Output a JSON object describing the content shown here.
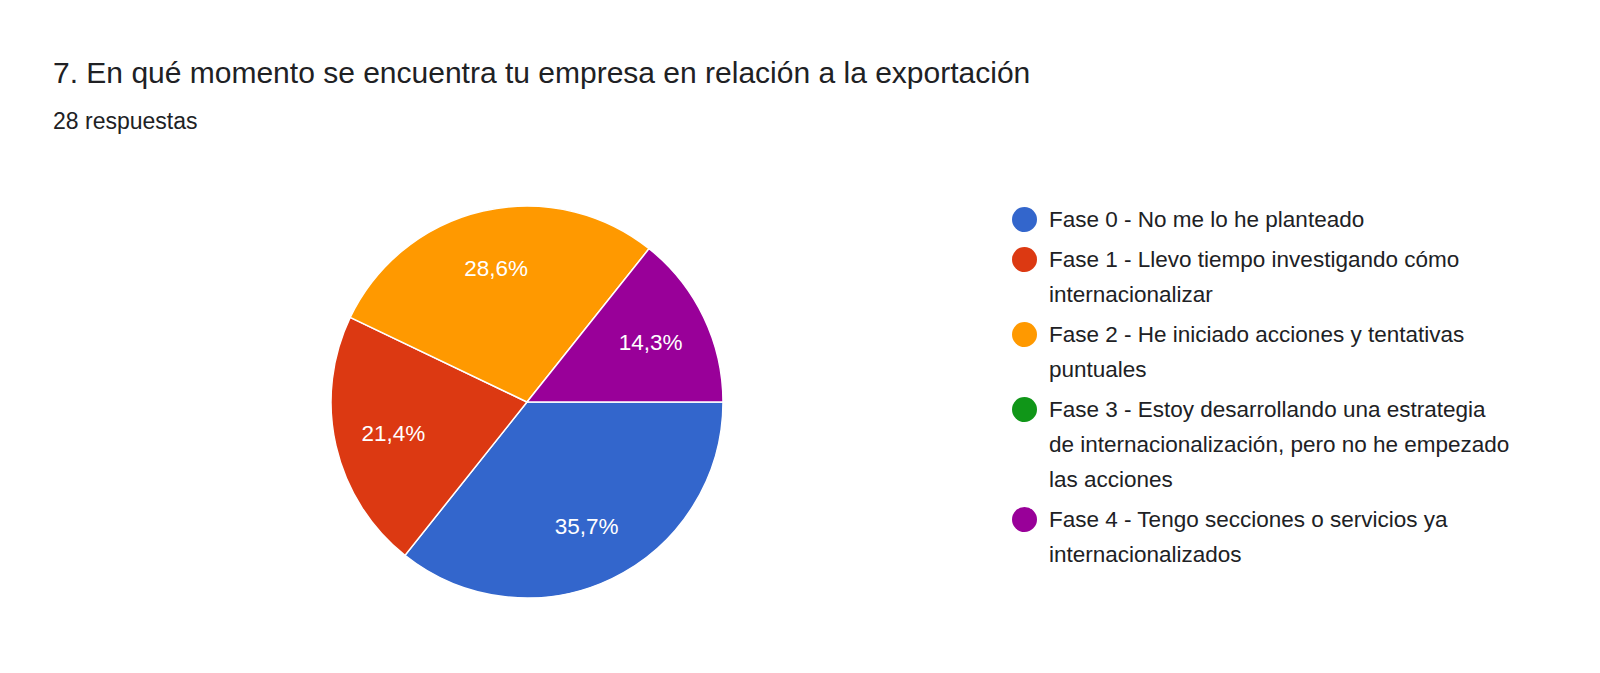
{
  "chart_data": {
    "type": "pie",
    "title": "7. En qué momento se encuentra tu empresa en relación a la exportación",
    "subtitle": "28 respuestas",
    "categories": [
      "Fase 0 - No me lo he planteado",
      "Fase 1 - Llevo tiempo investigando cómo internacionalizar",
      "Fase 2 - He iniciado acciones y tentativas puntuales",
      "Fase 3 - Estoy desarrollando una estrategia de internacionalización, pero no he empezado las acciones",
      "Fase 4 - Tengo secciones o servicios ya internacionalizados"
    ],
    "values": [
      35.7,
      21.4,
      28.6,
      0,
      14.3
    ],
    "value_labels": [
      "35,7%",
      "21,4%",
      "28,6%",
      null,
      "14,3%"
    ],
    "colors": [
      "#3366cc",
      "#dc3912",
      "#ff9900",
      "#109618",
      "#990099"
    ],
    "data_labels": true,
    "legend": "right"
  }
}
